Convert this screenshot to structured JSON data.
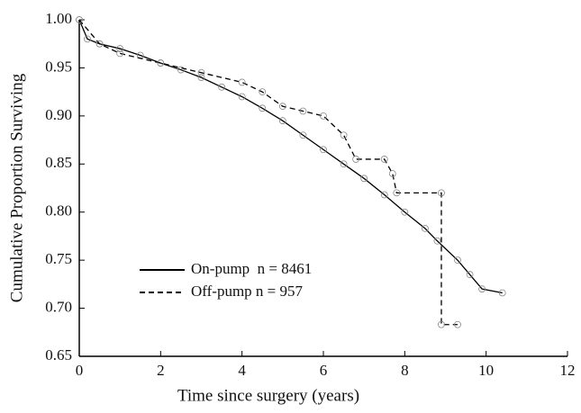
{
  "chart_data": {
    "type": "line",
    "xlabel": "Time since surgery (years)",
    "ylabel": "Cumulative Proportion Surviving",
    "xlim": [
      0,
      12
    ],
    "xticks": [
      0,
      2,
      4,
      6,
      8,
      10,
      12
    ],
    "ylim": [
      0.65,
      1.0
    ],
    "yticks": [
      0.65,
      {
        "value": 0.7,
        "label": "0.70"
      },
      0.75,
      {
        "value": 0.8,
        "label": "0.80"
      },
      0.85,
      {
        "value": 0.9,
        "label": "0.90"
      },
      0.95,
      {
        "value": 1.0,
        "label": "1.00"
      }
    ],
    "legend": "lower left",
    "series": [
      {
        "name": "On-pump  n = 8461",
        "color": "#000000",
        "dash": false,
        "x": [
          0,
          0.2,
          0.5,
          1,
          1.5,
          2,
          2.5,
          3,
          3.5,
          4,
          4.5,
          5,
          5.5,
          6,
          6.5,
          7,
          7.5,
          8,
          8.5,
          8.8,
          9.3,
          9.6,
          9.9,
          10.4
        ],
        "values": [
          1.0,
          0.98,
          0.975,
          0.97,
          0.963,
          0.955,
          0.948,
          0.94,
          0.93,
          0.92,
          0.908,
          0.895,
          0.88,
          0.865,
          0.85,
          0.835,
          0.818,
          0.8,
          0.783,
          0.77,
          0.75,
          0.735,
          0.72,
          0.716
        ]
      },
      {
        "name": "Off-pump n = 957",
        "color": "#000000",
        "dash": true,
        "x": [
          0,
          0.5,
          1,
          2,
          3,
          4,
          4.5,
          5,
          5.5,
          6,
          6.5,
          6.8,
          7.5,
          7.7,
          7.8,
          8.9,
          8.9,
          9.3
        ],
        "values": [
          1.0,
          0.975,
          0.965,
          0.955,
          0.945,
          0.935,
          0.925,
          0.91,
          0.905,
          0.9,
          0.88,
          0.855,
          0.855,
          0.84,
          0.82,
          0.82,
          0.683,
          0.683
        ]
      }
    ]
  }
}
